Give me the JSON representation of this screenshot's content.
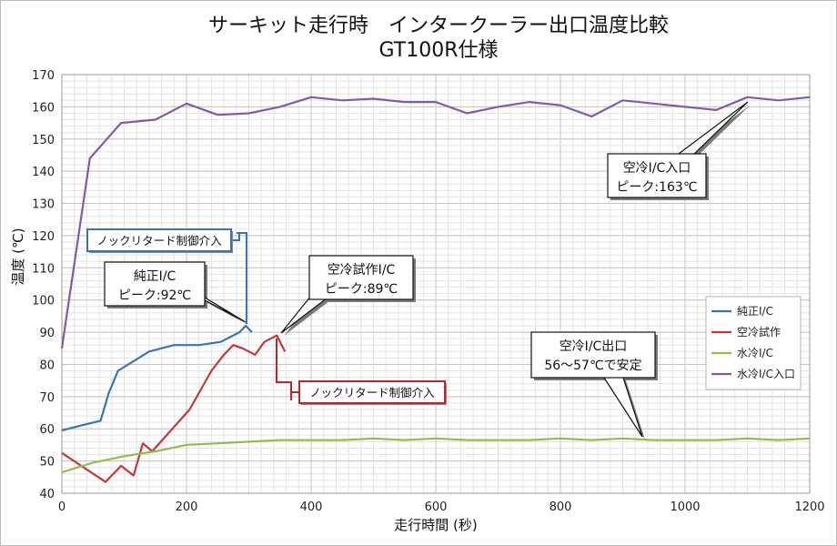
{
  "chart_data": {
    "type": "line",
    "title": "サーキット走行時　インタークーラー出口温度比較",
    "subtitle": "GT100R仕様",
    "xlabel": "走行時間 (秒)",
    "ylabel": "温度 (℃)",
    "xlim": [
      0,
      1200
    ],
    "ylim": [
      40,
      170
    ],
    "xticks": [
      0,
      200,
      400,
      600,
      800,
      1000,
      1200
    ],
    "yticks": [
      40,
      50,
      60,
      70,
      80,
      90,
      100,
      110,
      120,
      130,
      140,
      150,
      160,
      170
    ],
    "grid": true,
    "legend_position": "right",
    "series": [
      {
        "name": "純正I/C",
        "color": "#3a72b8",
        "x": [
          0,
          30,
          62,
          75,
          90,
          140,
          180,
          220,
          255,
          285,
          295,
          305
        ],
        "y": [
          59.5,
          61,
          62.5,
          71,
          78,
          84,
          86,
          86,
          87,
          90,
          92,
          90
        ]
      },
      {
        "name": "空冷試作",
        "color": "#c0393b",
        "x": [
          0,
          70,
          95,
          115,
          130,
          145,
          205,
          240,
          260,
          275,
          290,
          310,
          325,
          345,
          358
        ],
        "y": [
          52.5,
          43.5,
          48.5,
          45.5,
          55.5,
          53,
          66,
          78,
          83,
          86,
          85,
          83,
          87,
          89,
          84
        ]
      },
      {
        "name": "水冷I/C",
        "color": "#94be4b",
        "x": [
          0,
          50,
          100,
          150,
          200,
          250,
          300,
          350,
          400,
          450,
          500,
          550,
          600,
          650,
          700,
          750,
          800,
          850,
          900,
          950,
          1000,
          1050,
          1100,
          1150,
          1200
        ],
        "y": [
          46.5,
          49.5,
          51.5,
          53,
          55,
          55.5,
          56,
          56.5,
          56.5,
          56.5,
          57,
          56.5,
          57,
          56.5,
          56.5,
          56.5,
          57,
          56.5,
          57,
          56.5,
          56.5,
          56.5,
          57,
          56.5,
          57
        ]
      },
      {
        "name": "水冷I/C入口",
        "color": "#7e5ca8",
        "x": [
          0,
          45,
          95,
          150,
          200,
          250,
          300,
          350,
          400,
          450,
          500,
          550,
          600,
          650,
          700,
          750,
          800,
          850,
          900,
          950,
          1000,
          1050,
          1100,
          1150,
          1200
        ],
        "y": [
          85,
          144,
          155,
          156,
          161,
          157.5,
          158,
          160,
          163,
          162,
          162.5,
          161.5,
          161.5,
          158,
          160,
          161.5,
          160.5,
          157,
          162,
          161,
          160,
          159,
          163,
          162,
          163
        ]
      }
    ],
    "annotations": [
      {
        "id": "junsei",
        "lines": [
          "純正I/C",
          "ピーク:92℃"
        ],
        "target_x": 295,
        "target_y": 92
      },
      {
        "id": "kurei-shisaku",
        "lines": [
          "空冷試作I/C",
          "ピーク:89℃"
        ],
        "target_x": 345,
        "target_y": 89
      },
      {
        "id": "kurei-outlet",
        "lines": [
          "空冷I/C出口",
          "56〜57℃で安定"
        ],
        "target_x": 930,
        "target_y": 57
      },
      {
        "id": "suirei-inlet-peak",
        "lines": [
          "空冷I/C入口",
          "ピーク:163℃"
        ],
        "target_x": 1100,
        "target_y": 163
      }
    ],
    "knock_labels": [
      {
        "id": "knock-blue",
        "text": "ノックリタード制御介入",
        "color": "#3a72b8",
        "at_x": 295
      },
      {
        "id": "knock-red",
        "text": "ノックリタード制御介入",
        "color": "#b8282a",
        "at_x": 345
      }
    ]
  }
}
